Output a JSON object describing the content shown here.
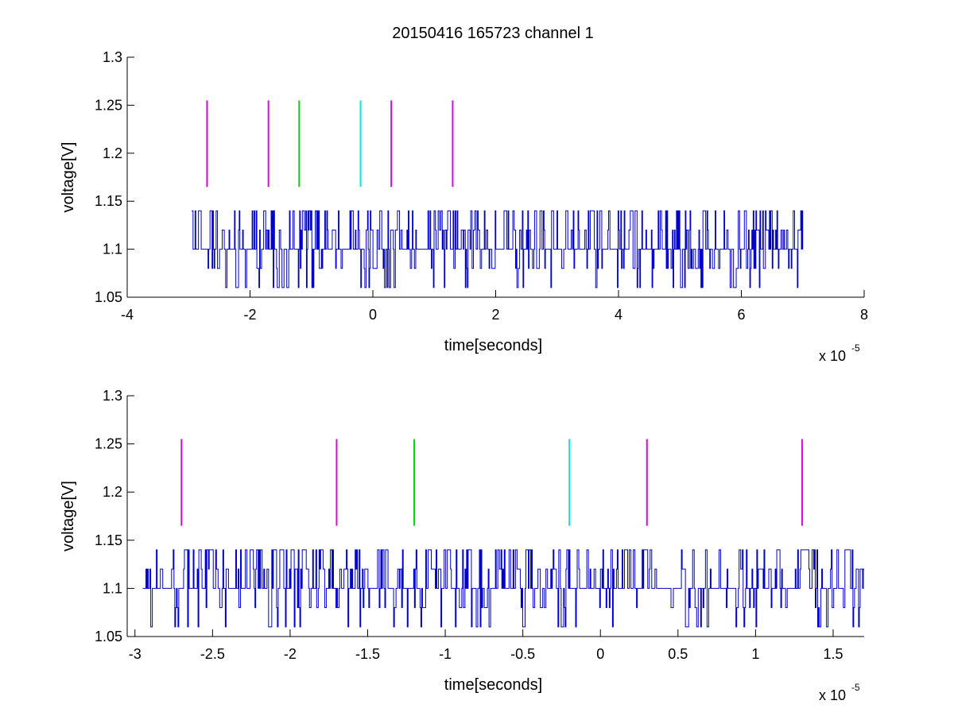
{
  "figure": {
    "title": "20150416 165723 channel 1"
  },
  "chart_data": [
    {
      "type": "line",
      "title": "20150416 165723 channel 1",
      "xlabel": "time[seconds]",
      "ylabel": "voltage[V]",
      "x_exponent_label": "x 10",
      "x_exponent": "-5",
      "xlim": [
        -4,
        8
      ],
      "ylim": [
        1.05,
        1.3
      ],
      "x_ticks": [
        -4,
        -2,
        0,
        2,
        4,
        6,
        8
      ],
      "x_tick_labels": [
        "-4",
        "-2",
        "0",
        "2",
        "4",
        "6",
        "8"
      ],
      "y_ticks": [
        1.05,
        1.1,
        1.15,
        1.2,
        1.25,
        1.3
      ],
      "y_tick_labels": [
        "1.05",
        "1.1",
        "1.15",
        "1.2",
        "1.25",
        "1.3"
      ],
      "grid": false,
      "series": [
        {
          "color": "#0000cc",
          "x_range": [
            -2.95,
            7.0
          ],
          "levels": [
            1.06,
            1.08,
            1.1,
            1.12,
            1.14
          ],
          "baseline": 1.1,
          "description": "noisy quantized voltage trace"
        }
      ],
      "markers": [
        {
          "x": -2.7,
          "y_range": [
            1.165,
            1.255
          ],
          "color": "#e600e6"
        },
        {
          "x": -1.7,
          "y_range": [
            1.165,
            1.255
          ],
          "color": "#e600e6"
        },
        {
          "x": -1.2,
          "y_range": [
            1.165,
            1.255
          ],
          "color": "#00dd00"
        },
        {
          "x": -0.2,
          "y_range": [
            1.165,
            1.255
          ],
          "color": "#00e6e6"
        },
        {
          "x": 0.3,
          "y_range": [
            1.165,
            1.255
          ],
          "color": "#e600e6"
        },
        {
          "x": 1.3,
          "y_range": [
            1.165,
            1.255
          ],
          "color": "#e600e6"
        }
      ]
    },
    {
      "type": "line",
      "title": "",
      "xlabel": "time[seconds]",
      "ylabel": "voltage[V]",
      "x_exponent_label": "x 10",
      "x_exponent": "-5",
      "xlim": [
        -3.05,
        1.7
      ],
      "ylim": [
        1.05,
        1.3
      ],
      "x_ticks": [
        -3,
        -2.5,
        -2,
        -1.5,
        -1,
        -0.5,
        0,
        0.5,
        1,
        1.5
      ],
      "x_tick_labels": [
        "-3",
        "-2.5",
        "-2",
        "-1.5",
        "-1",
        "-0.5",
        "0",
        "0.5",
        "1",
        "1.5"
      ],
      "y_ticks": [
        1.05,
        1.1,
        1.15,
        1.2,
        1.25,
        1.3
      ],
      "y_tick_labels": [
        "1.05",
        "1.1",
        "1.15",
        "1.2",
        "1.25",
        "1.3"
      ],
      "grid": false,
      "series": [
        {
          "color": "#0000cc",
          "x_range": [
            -2.95,
            1.7
          ],
          "levels": [
            1.06,
            1.08,
            1.1,
            1.12,
            1.14
          ],
          "baseline": 1.1,
          "description": "noisy quantized voltage trace (zoomed)"
        }
      ],
      "markers": [
        {
          "x": -2.7,
          "y_range": [
            1.165,
            1.255
          ],
          "color": "#e600e6"
        },
        {
          "x": -1.7,
          "y_range": [
            1.165,
            1.255
          ],
          "color": "#e600e6"
        },
        {
          "x": -1.2,
          "y_range": [
            1.165,
            1.255
          ],
          "color": "#00dd00"
        },
        {
          "x": -0.2,
          "y_range": [
            1.165,
            1.255
          ],
          "color": "#00e6e6"
        },
        {
          "x": 0.3,
          "y_range": [
            1.165,
            1.255
          ],
          "color": "#e600e6"
        },
        {
          "x": 1.3,
          "y_range": [
            1.165,
            1.255
          ],
          "color": "#e600e6"
        }
      ]
    }
  ]
}
